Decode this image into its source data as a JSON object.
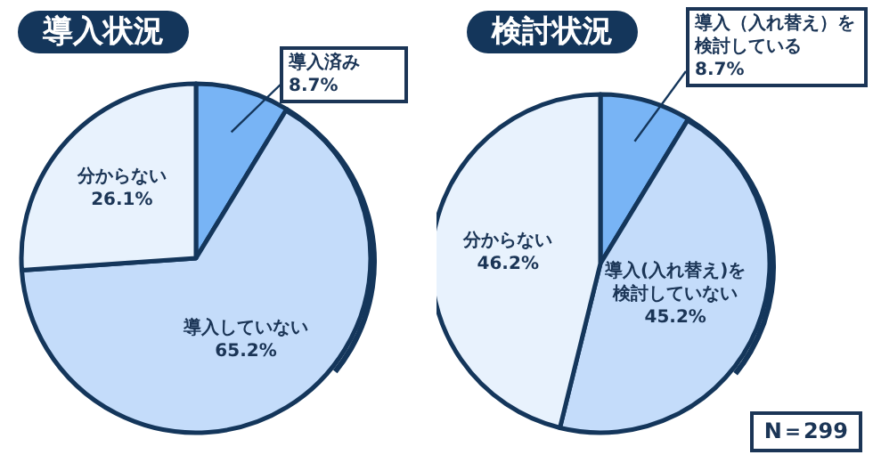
{
  "chart_data": [
    {
      "type": "pie",
      "title": "導入状況",
      "categories": [
        "導入済み",
        "導入していない",
        "分からない"
      ],
      "values": [
        8.7,
        65.2,
        26.1
      ],
      "value_labels": [
        "8.7%",
        "65.2%",
        "26.1%"
      ],
      "colors": [
        "#78b4f5",
        "#c4dcfa",
        "#e8f2fd"
      ]
    },
    {
      "type": "pie",
      "title": "検討状況",
      "categories": [
        "導入（入れ替え）を検討している",
        "導入(入れ替え)を検討していない",
        "分からない"
      ],
      "values": [
        8.7,
        45.2,
        46.2
      ],
      "value_labels": [
        "8.7%",
        "45.2%",
        "46.2%"
      ],
      "colors": [
        "#78b4f5",
        "#c4dcfa",
        "#e8f2fd"
      ],
      "annotations": [
        "N＝299"
      ]
    }
  ]
}
